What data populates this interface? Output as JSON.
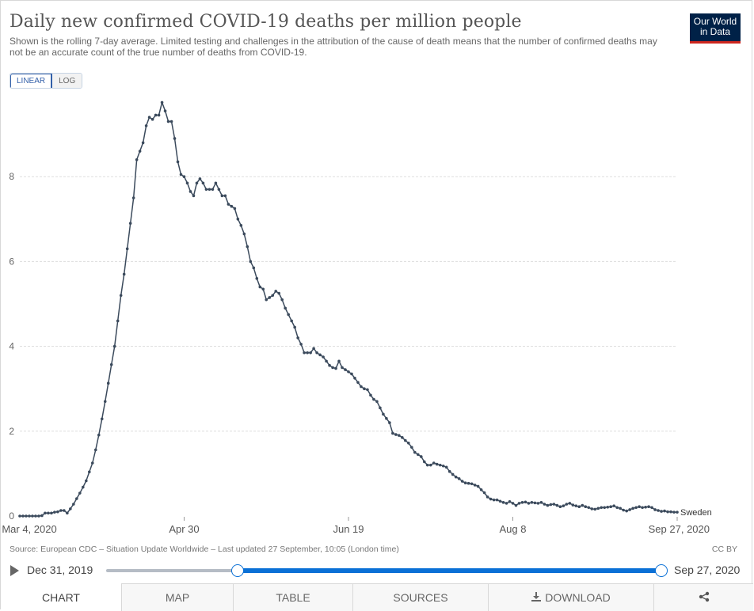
{
  "header": {
    "title": "Daily new confirmed COVID-19 deaths per million people",
    "subtitle": "Shown is the rolling 7-day average. Limited testing and challenges in the attribution of the cause of death means that the number of confirmed deaths may not be an accurate count of the true number of deaths from COVID-19.",
    "logo_line1": "Our World",
    "logo_line2": "in Data"
  },
  "scale_toggle": {
    "linear_label": "LINEAR",
    "log_label": "LOG",
    "selected": "LINEAR"
  },
  "footer": {
    "source": "Source: European CDC – Situation Update Worldwide – Last updated 27 September, 10:05 (London time)",
    "license": "CC BY"
  },
  "timeline": {
    "start_label": "Dec 31, 2019",
    "end_label": "Sep 27, 2020",
    "selected_start": "Mar 4, 2020",
    "selected_end": "Sep 27, 2020"
  },
  "tabs": [
    {
      "label": "CHART",
      "active": true
    },
    {
      "label": "MAP",
      "active": false
    },
    {
      "label": "TABLE",
      "active": false
    },
    {
      "label": "SOURCES",
      "active": false
    },
    {
      "label": "DOWNLOAD",
      "active": false,
      "icon": "download-icon"
    },
    {
      "label": "",
      "active": false,
      "icon": "share-icon"
    }
  ],
  "chart_data": {
    "type": "line",
    "x_start": "2020-03-04",
    "x_end": "2020-09-27",
    "x_tick_labels": [
      "Mar 4, 2020",
      "Apr 30",
      "Jun 19",
      "Aug 8",
      "Sep 27, 2020"
    ],
    "y_ticks": [
      0,
      2,
      4,
      6,
      8
    ],
    "ylim": [
      0,
      9.9
    ],
    "grid": true,
    "series": [
      {
        "name": "Sweden",
        "color": "#3b4a5c",
        "values": [
          0,
          0,
          0,
          0,
          0,
          0,
          0,
          0.01,
          0.07,
          0.07,
          0.07,
          0.09,
          0.1,
          0.13,
          0.13,
          0.07,
          0.17,
          0.28,
          0.41,
          0.54,
          0.68,
          0.83,
          1.04,
          1.25,
          1.56,
          1.91,
          2.29,
          2.7,
          3.13,
          3.57,
          4.0,
          4.6,
          5.2,
          5.7,
          6.3,
          6.9,
          7.5,
          8.4,
          8.6,
          8.8,
          9.2,
          9.4,
          9.35,
          9.45,
          9.45,
          9.75,
          9.55,
          9.3,
          9.3,
          8.9,
          8.35,
          8.05,
          8.0,
          7.85,
          7.65,
          7.55,
          7.85,
          7.95,
          7.85,
          7.7,
          7.7,
          7.7,
          7.85,
          7.7,
          7.55,
          7.55,
          7.35,
          7.3,
          7.25,
          7.0,
          6.85,
          6.65,
          6.35,
          6.0,
          5.85,
          5.6,
          5.4,
          5.35,
          5.1,
          5.15,
          5.2,
          5.3,
          5.25,
          5.1,
          4.9,
          4.75,
          4.6,
          4.45,
          4.2,
          4.05,
          3.85,
          3.85,
          3.85,
          3.95,
          3.85,
          3.8,
          3.75,
          3.65,
          3.55,
          3.5,
          3.48,
          3.65,
          3.5,
          3.45,
          3.4,
          3.35,
          3.25,
          3.15,
          3.05,
          3.0,
          2.98,
          2.85,
          2.75,
          2.7,
          2.55,
          2.4,
          2.3,
          2.2,
          1.95,
          1.92,
          1.9,
          1.85,
          1.78,
          1.72,
          1.62,
          1.5,
          1.45,
          1.4,
          1.28,
          1.2,
          1.2,
          1.25,
          1.22,
          1.2,
          1.18,
          1.15,
          1.05,
          0.98,
          0.92,
          0.88,
          0.82,
          0.78,
          0.77,
          0.76,
          0.73,
          0.7,
          0.62,
          0.55,
          0.45,
          0.4,
          0.38,
          0.38,
          0.35,
          0.32,
          0.3,
          0.34,
          0.3,
          0.25,
          0.3,
          0.32,
          0.33,
          0.3,
          0.32,
          0.31,
          0.3,
          0.32,
          0.28,
          0.25,
          0.27,
          0.28,
          0.25,
          0.22,
          0.24,
          0.28,
          0.3,
          0.26,
          0.24,
          0.22,
          0.25,
          0.22,
          0.2,
          0.17,
          0.16,
          0.18,
          0.2,
          0.2,
          0.21,
          0.22,
          0.24,
          0.2,
          0.18,
          0.14,
          0.12,
          0.15,
          0.18,
          0.2,
          0.22,
          0.2,
          0.21,
          0.22,
          0.2,
          0.15,
          0.13,
          0.11,
          0.12,
          0.1,
          0.1,
          0.09,
          0.09
        ]
      }
    ]
  }
}
